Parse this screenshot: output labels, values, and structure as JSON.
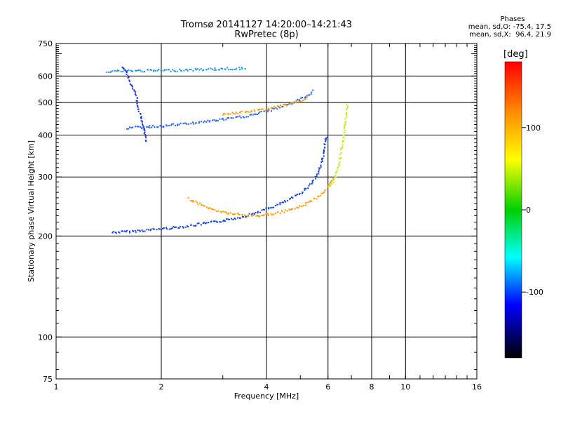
{
  "header": {
    "title": "Tromsø 20141127 14:20:00–14:21:43",
    "subtitle": "RwPretec (8p)",
    "phase_title": "Phases",
    "phase_line_o": "mean, sd,O: -75.4, 17.5",
    "phase_line_x": "mean, sd,X:  96.4, 21.9"
  },
  "chart_data": {
    "type": "scatter",
    "xlabel": "Frequency [MHz]",
    "ylabel": "Stationary phase Virtual Height [km]",
    "x_scale": "log",
    "y_scale": "log",
    "xlim": [
      1,
      16
    ],
    "ylim": [
      75,
      750
    ],
    "x_ticks": [
      1,
      2,
      4,
      6,
      8,
      10,
      16
    ],
    "x_tick_labels": [
      "1",
      "2",
      "4",
      "6",
      "8",
      "10",
      "16"
    ],
    "y_ticks": [
      75,
      100,
      200,
      300,
      400,
      500,
      600,
      750
    ],
    "y_tick_labels": [
      "75",
      "100",
      "200",
      "300",
      "400",
      "500",
      "600",
      "750"
    ],
    "grid": true,
    "colorbar": {
      "label": "[deg]",
      "range": [
        -180,
        180
      ],
      "ticks": [
        100,
        0,
        -100
      ],
      "tick_labels": [
        "100",
        "0",
        "-100"
      ],
      "colors": [
        "#ff0000",
        "#ff8c00",
        "#ffff00",
        "#00d000",
        "#00ffff",
        "#0000ff",
        "#000000"
      ]
    },
    "series": [
      {
        "color": "#1040e0",
        "points": [
          [
            1.45,
            205
          ],
          [
            1.6,
            206
          ],
          [
            1.8,
            208
          ],
          [
            2.0,
            210
          ],
          [
            2.3,
            213
          ],
          [
            2.6,
            217
          ],
          [
            3.0,
            222
          ],
          [
            3.4,
            228
          ],
          [
            3.8,
            236
          ],
          [
            4.2,
            245
          ],
          [
            4.6,
            255
          ],
          [
            5.0,
            268
          ],
          [
            5.3,
            282
          ],
          [
            5.6,
            305
          ],
          [
            5.8,
            340
          ],
          [
            5.9,
            380
          ],
          [
            5.95,
            400
          ]
        ]
      },
      {
        "color": "#ff9900",
        "points": [
          [
            2.4,
            258
          ],
          [
            2.6,
            248
          ],
          [
            2.8,
            240
          ],
          [
            3.1,
            234
          ],
          [
            3.4,
            231
          ],
          [
            3.8,
            230
          ],
          [
            4.2,
            233
          ],
          [
            4.6,
            238
          ],
          [
            5.0,
            245
          ],
          [
            5.4,
            255
          ],
          [
            5.7,
            265
          ],
          [
            6.0,
            280
          ],
          [
            6.3,
            300
          ]
        ]
      },
      {
        "color": "#c8e628",
        "points": [
          [
            6.1,
            280
          ],
          [
            6.3,
            300
          ],
          [
            6.45,
            330
          ],
          [
            6.55,
            360
          ],
          [
            6.65,
            390
          ],
          [
            6.7,
            420
          ],
          [
            6.75,
            450
          ],
          [
            6.8,
            480
          ],
          [
            6.82,
            500
          ]
        ]
      },
      {
        "color": "#2090e8",
        "points": [
          [
            1.4,
            620
          ],
          [
            1.8,
            622
          ],
          [
            2.2,
            624
          ],
          [
            2.6,
            627
          ],
          [
            3.0,
            630
          ],
          [
            3.5,
            632
          ]
        ]
      },
      {
        "color": "#1f60f0",
        "points": [
          [
            1.6,
            420
          ],
          [
            2.0,
            425
          ],
          [
            2.5,
            435
          ],
          [
            3.0,
            445
          ],
          [
            3.5,
            455
          ],
          [
            4.0,
            470
          ],
          [
            4.5,
            490
          ],
          [
            5.0,
            510
          ],
          [
            5.3,
            530
          ],
          [
            5.5,
            545
          ]
        ]
      },
      {
        "color": "#ff9900",
        "points": [
          [
            3.0,
            462
          ],
          [
            3.5,
            468
          ],
          [
            4.0,
            478
          ],
          [
            4.5,
            490
          ],
          [
            4.9,
            502
          ],
          [
            5.3,
            515
          ]
        ]
      },
      {
        "color": "#1830d0",
        "points": [
          [
            1.55,
            640
          ],
          [
            1.6,
            600
          ],
          [
            1.65,
            560
          ],
          [
            1.7,
            520
          ],
          [
            1.72,
            480
          ],
          [
            1.75,
            450
          ],
          [
            1.78,
            420
          ],
          [
            1.8,
            400
          ],
          [
            1.82,
            380
          ]
        ]
      }
    ]
  }
}
